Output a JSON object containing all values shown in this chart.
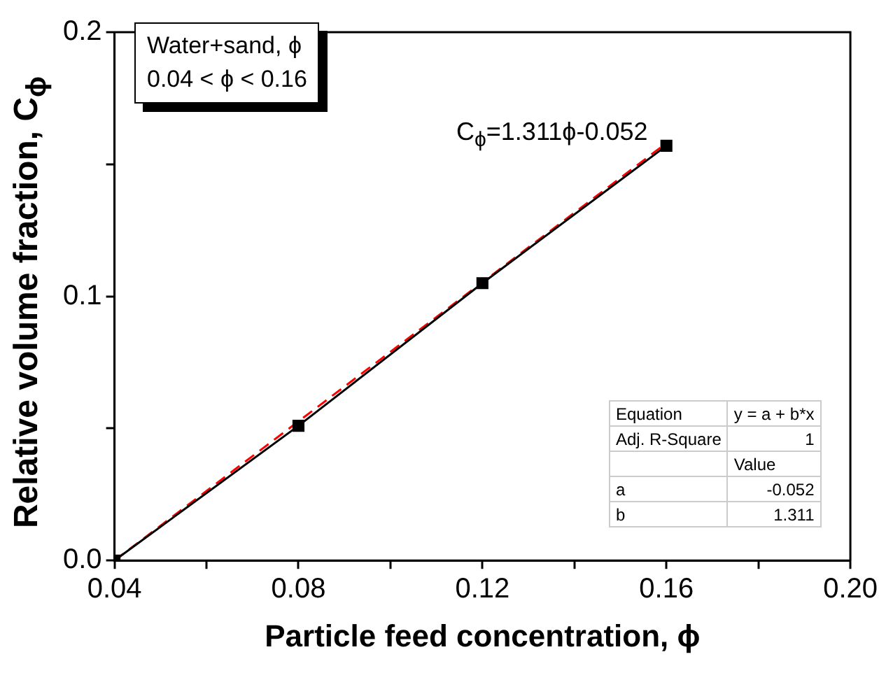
{
  "chart_data": {
    "type": "line",
    "xlabel": "Particle feed concentration, ϕ",
    "ylabel": "Relative volume fraction, C$_{ϕ}$",
    "x": [
      0.04,
      0.08,
      0.12,
      0.16
    ],
    "series": [
      {
        "color": "#000000",
        "values": [
          0.0,
          0.051,
          0.105,
          0.157
        ],
        "marker": "square",
        "line_style": "solid"
      },
      {
        "color": "#ff0000",
        "x": [
          0.04,
          0.16
        ],
        "values": [
          0.0,
          0.158
        ],
        "marker": "none",
        "line_style": "dashed"
      }
    ],
    "xlim": [
      0.04,
      0.2
    ],
    "xticks": [
      {
        "value": 0.04,
        "label": "0.04"
      },
      {
        "value": 0.06,
        "label": null
      },
      {
        "value": 0.08,
        "label": "0.08"
      },
      {
        "value": 0.1,
        "label": null
      },
      {
        "value": 0.12,
        "label": "0.12"
      },
      {
        "value": 0.14,
        "label": null
      },
      {
        "value": 0.16,
        "label": "0.16"
      },
      {
        "value": 0.18,
        "label": null
      },
      {
        "value": 0.2,
        "label": "0.20"
      }
    ],
    "ylim": [
      0,
      0.2
    ],
    "yticks": [
      {
        "value": 0,
        "label": "0.0"
      },
      {
        "value": 0.05,
        "label": null
      },
      {
        "value": 0.1,
        "label": "0.1"
      },
      {
        "value": 0.15,
        "label": null
      },
      {
        "value": 0.2,
        "label": "0.2"
      }
    ],
    "grid": false,
    "annotations": [
      "Water+sand, ϕ",
      "0.04 < ϕ < 0.16",
      "C$_{ϕ}$=1.311ϕ-0.052",
      "Equation",
      "y = a + b*x",
      "Adj. R-Square",
      "1",
      "Value",
      "a",
      "-0.052",
      "b",
      "1.311"
    ]
  }
}
